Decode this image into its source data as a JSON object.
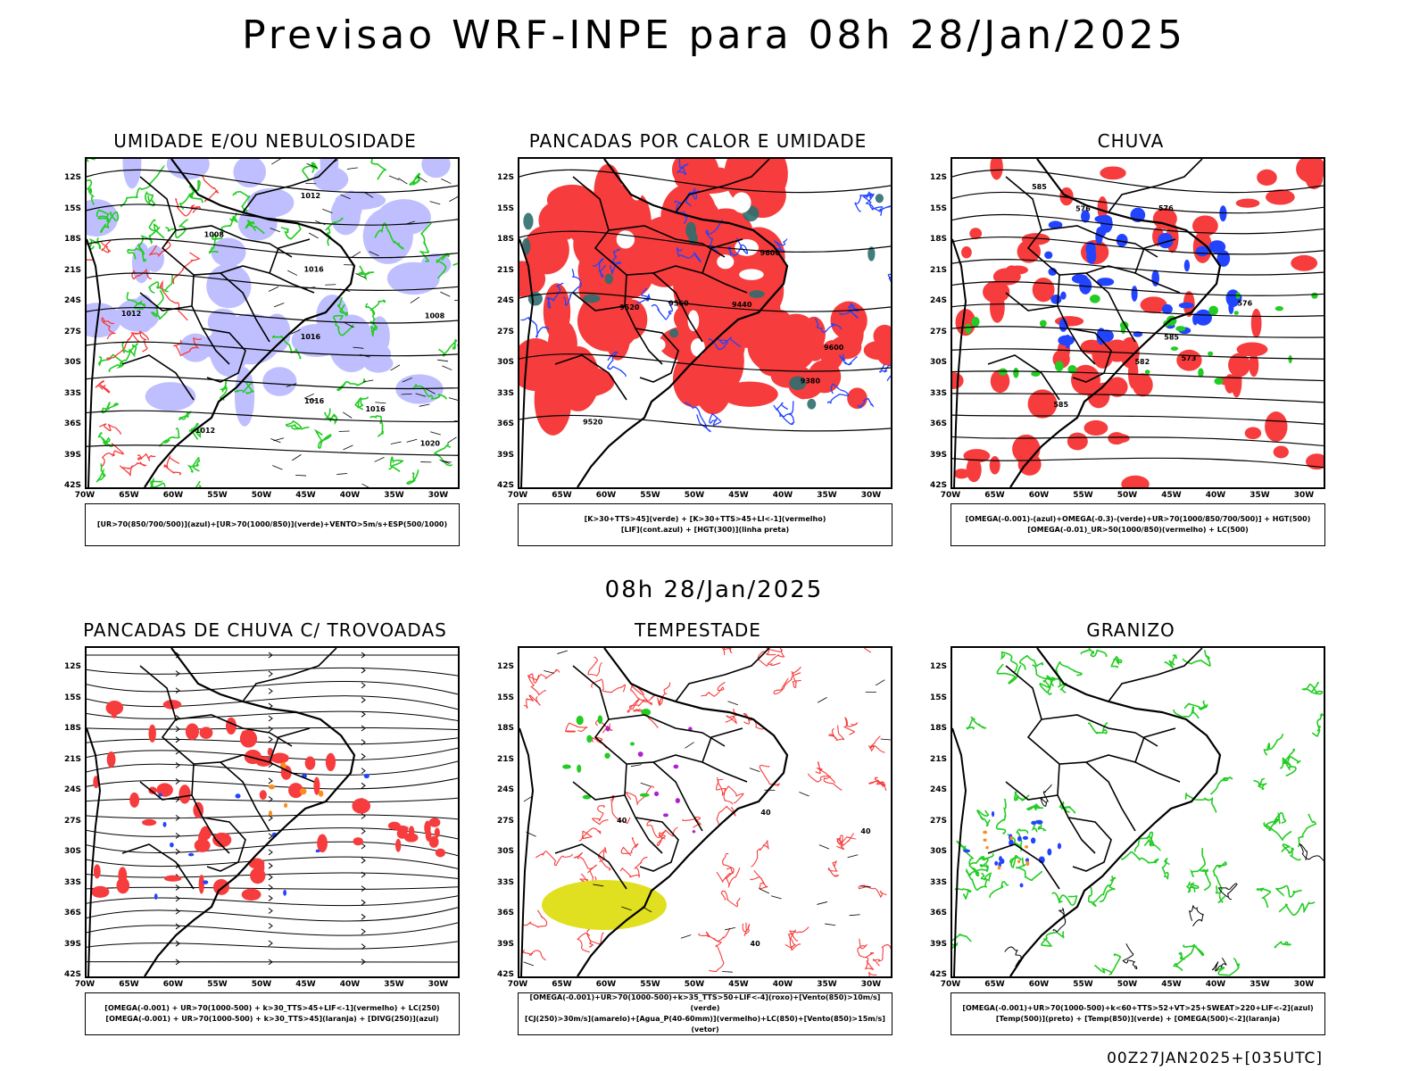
{
  "title": "Previsao WRF-INPE  para 08h 28/Jan/2025",
  "mid_title": "08h 28/Jan/2025",
  "footer": "00Z27JAN2025+[035UTC]",
  "latitude_labels": [
    "12S",
    "15S",
    "18S",
    "21S",
    "24S",
    "27S",
    "30S",
    "33S",
    "36S",
    "39S",
    "42S"
  ],
  "longitude_labels": [
    "70W",
    "65W",
    "60W",
    "55W",
    "50W",
    "45W",
    "40W",
    "35W",
    "30W"
  ],
  "colors": {
    "red": "#f63c3c",
    "green": "#22cc22",
    "blue": "#2244ff",
    "lavender": "#b4b4ff",
    "yellow": "#e0e020",
    "teal": "#2e6e6e",
    "purple": "#b020d0",
    "orange": "#ff8c1a"
  },
  "panels": [
    {
      "title": "UMIDADE E/OU NEBULOSIDADE",
      "legend": [
        "[UR>70(850/700/500)](azul)+[UR>70(1000/850)](verde)+VENTO>5m/s+ESP(500/1000)"
      ],
      "contour_labels": [
        "1012",
        "1008",
        "1012",
        "1016",
        "1008",
        "1012",
        "1016",
        "1016",
        "1020",
        "1016"
      ]
    },
    {
      "title": "PANCADAS POR CALOR E UMIDADE",
      "legend": [
        "[K>30+TTS>45](verde) + [K>30+TTS>45+LI<-1](vermelho)",
        "[LIF](cont.azul) + [HGT(300)](linha preta)"
      ],
      "contour_labels": [
        "9600",
        "9560",
        "9520",
        "9600",
        "9520",
        "9440",
        "9380"
      ]
    },
    {
      "title": "CHUVA",
      "legend": [
        "[OMEGA(-0.001)-(azul)+OMEGA(-0.3)-(verde)+UR>70(1000/850/700/500)] + HGT(500)",
        "[OMEGA(-0.01)_UR>50(1000/850)(vermelho) + LC(500)"
      ],
      "contour_labels": [
        "585",
        "585",
        "582",
        "576",
        "576",
        "573",
        "576",
        "585"
      ]
    },
    {
      "title": "PANCADAS DE CHUVA C/ TROVOADAS",
      "legend": [
        "[OMEGA(-0.001) + UR>70(1000-500) + k>30_TTS>45+LIF<-1](vermelho) + LC(250)",
        "[OMEGA(-0.001) + UR>70(1000-500) + k>30_TTS>45](laranja) + [DIVG(250)](azul)"
      ],
      "contour_labels": []
    },
    {
      "title": "TEMPESTADE",
      "legend": [
        "[OMEGA(-0.001)+UR>70(1000-500)+k>35_TTS>50+LIF<-4](roxo)+[Vento(850)>10m/s](verde)",
        "[CJ(250)>30m/s](amarelo)+[Agua_P(40-60mm)](vermelho)+LC(850)+[Vento(850)>15m/s](vetor)"
      ],
      "contour_labels": [
        "40",
        "40",
        "40",
        "40"
      ]
    },
    {
      "title": "GRANIZO",
      "legend": [
        "[OMEGA(-0.001)+UR>70(1000-500)+k<60+TTS>52+VT>25+SWEAT>220+LIF<-2](azul)",
        "[Temp(500)](preto) + [Temp(850)](verde) + [OMEGA(500)<-2](laranja)"
      ],
      "contour_labels": []
    }
  ]
}
